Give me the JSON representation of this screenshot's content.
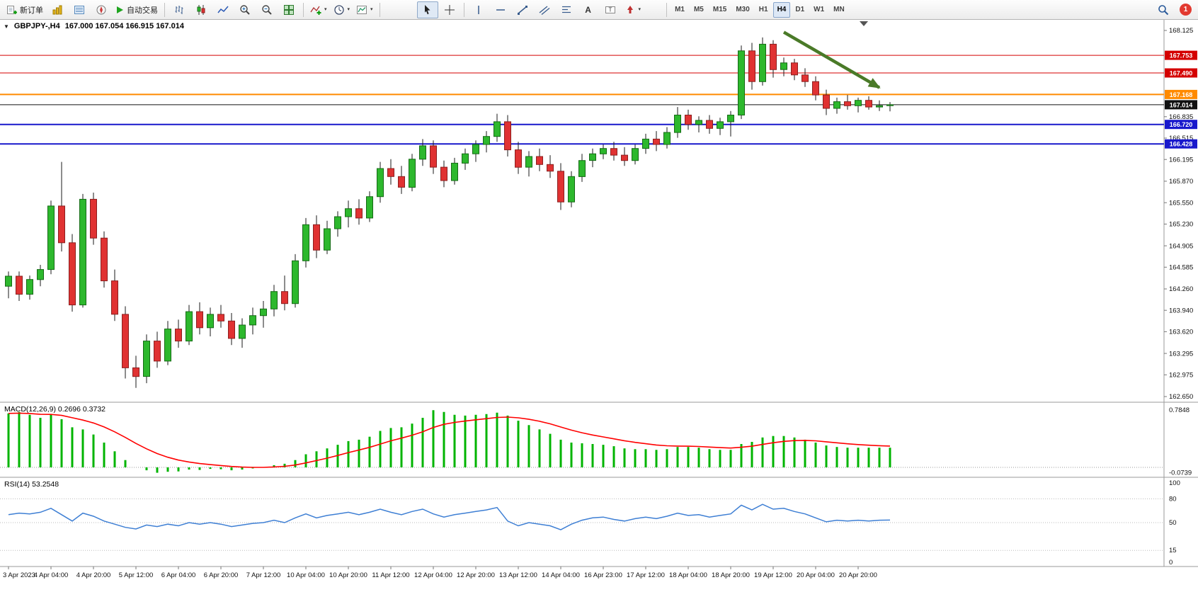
{
  "toolbar": {
    "new_order_label": "新订单",
    "autotrading_label": "自动交易",
    "timeframes": [
      "M1",
      "M5",
      "M15",
      "M30",
      "H1",
      "H4",
      "D1",
      "W1",
      "MN"
    ],
    "active_timeframe": "H4",
    "notification_count": "1",
    "icon_buttons": [
      "new-order-icon",
      "market-watch-icon",
      "data-window-icon",
      "navigator-icon",
      "autotrading-play-icon",
      "bar-chart-icon",
      "candlestick-chart-icon",
      "line-chart-icon",
      "zoom-in-icon",
      "zoom-out-icon",
      "tile-windows-icon",
      "indicators-icon",
      "periods-icon",
      "templates-icon",
      "cursor-icon",
      "crosshair-icon",
      "vertical-line-icon",
      "horizontal-line-icon",
      "trendline-icon",
      "equidistant-channel-icon",
      "fibonacci-icon",
      "text-icon",
      "text-label-icon",
      "arrows-icon",
      "search-icon"
    ]
  },
  "chart_data": [
    {
      "type": "candlestick",
      "symbol": "GBPJPY-",
      "timeframe": "H4",
      "title": "GBPJPY-,H4",
      "ohlc_label": "167.000 167.054 166.915 167.014",
      "current": {
        "open": 167.0,
        "high": 167.054,
        "low": 166.915,
        "close": 167.014
      },
      "up_color": "#2db82d",
      "down_color": "#e03232",
      "ylim": [
        162.65,
        168.125
      ],
      "y_ticks": [
        "168.125",
        "166.835",
        "166.515",
        "166.195",
        "165.870",
        "165.550",
        "165.230",
        "164.905",
        "164.585",
        "164.260",
        "163.940",
        "163.620",
        "163.295",
        "162.975",
        "162.650"
      ],
      "levels": [
        {
          "price": 167.753,
          "label": "167.753",
          "color": "#d40000",
          "width": 1
        },
        {
          "price": 167.49,
          "label": "167.490",
          "color": "#d40000",
          "width": 1
        },
        {
          "price": 167.168,
          "label": "167.168",
          "color": "#ff8a00",
          "width": 2
        },
        {
          "price": 167.014,
          "label": "167.014",
          "color": "#111111",
          "width": 1,
          "role": "current-price"
        },
        {
          "price": 166.72,
          "label": "166.720",
          "color": "#1818cc",
          "width": 2
        },
        {
          "price": 166.428,
          "label": "166.428",
          "color": "#1818cc",
          "width": 2
        }
      ],
      "time_labels": [
        {
          "label": "3 Apr 2023",
          "index": 0
        },
        {
          "label": "4 Apr 04:00",
          "index": 4
        },
        {
          "label": "4 Apr 20:00",
          "index": 8
        },
        {
          "label": "5 Apr 12:00",
          "index": 12
        },
        {
          "label": "6 Apr 04:00",
          "index": 16
        },
        {
          "label": "6 Apr 20:00",
          "index": 20
        },
        {
          "label": "7 Apr 12:00",
          "index": 24
        },
        {
          "label": "10 Apr 04:00",
          "index": 28
        },
        {
          "label": "10 Apr 20:00",
          "index": 32
        },
        {
          "label": "11 Apr 12:00",
          "index": 36
        },
        {
          "label": "12 Apr 04:00",
          "index": 40
        },
        {
          "label": "12 Apr 20:00",
          "index": 44
        },
        {
          "label": "13 Apr 12:00",
          "index": 48
        },
        {
          "label": "14 Apr 04:00",
          "index": 52
        },
        {
          "label": "16 Apr 23:00",
          "index": 56
        },
        {
          "label": "17 Apr 12:00",
          "index": 60
        },
        {
          "label": "18 Apr 04:00",
          "index": 64
        },
        {
          "label": "18 Apr 20:00",
          "index": 68
        },
        {
          "label": "19 Apr 12:00",
          "index": 72
        },
        {
          "label": "20 Apr 04:00",
          "index": 76
        },
        {
          "label": "20 Apr 20:00",
          "index": 80
        }
      ],
      "candles": [
        [
          164.3,
          164.52,
          164.12,
          164.45
        ],
        [
          164.45,
          164.52,
          164.08,
          164.18
        ],
        [
          164.18,
          164.46,
          164.1,
          164.4
        ],
        [
          164.4,
          164.62,
          164.3,
          164.55
        ],
        [
          164.55,
          165.58,
          164.48,
          165.5
        ],
        [
          165.5,
          166.16,
          164.82,
          164.95
        ],
        [
          164.95,
          165.08,
          163.92,
          164.02
        ],
        [
          164.02,
          165.68,
          163.98,
          165.6
        ],
        [
          165.6,
          165.7,
          164.92,
          165.02
        ],
        [
          165.02,
          165.12,
          164.28,
          164.38
        ],
        [
          164.38,
          164.55,
          163.78,
          163.88
        ],
        [
          163.88,
          164.0,
          162.92,
          163.08
        ],
        [
          163.08,
          163.26,
          162.78,
          162.95
        ],
        [
          162.95,
          163.58,
          162.85,
          163.48
        ],
        [
          163.48,
          163.62,
          163.08,
          163.18
        ],
        [
          163.18,
          163.78,
          163.12,
          163.66
        ],
        [
          163.66,
          163.8,
          163.38,
          163.48
        ],
        [
          163.48,
          164.02,
          163.42,
          163.92
        ],
        [
          163.92,
          164.06,
          163.58,
          163.68
        ],
        [
          163.68,
          163.98,
          163.55,
          163.88
        ],
        [
          163.88,
          164.02,
          163.68,
          163.78
        ],
        [
          163.78,
          163.9,
          163.42,
          163.52
        ],
        [
          163.52,
          163.82,
          163.38,
          163.72
        ],
        [
          163.72,
          163.98,
          163.58,
          163.86
        ],
        [
          163.86,
          164.08,
          163.68,
          163.96
        ],
        [
          163.96,
          164.32,
          163.85,
          164.22
        ],
        [
          164.22,
          164.46,
          163.94,
          164.04
        ],
        [
          164.04,
          164.78,
          163.98,
          164.68
        ],
        [
          164.68,
          165.32,
          164.58,
          165.22
        ],
        [
          165.22,
          165.36,
          164.72,
          164.84
        ],
        [
          164.84,
          165.28,
          164.78,
          165.16
        ],
        [
          165.16,
          165.42,
          165.04,
          165.34
        ],
        [
          165.34,
          165.58,
          165.18,
          165.46
        ],
        [
          165.46,
          165.6,
          165.22,
          165.32
        ],
        [
          165.32,
          165.72,
          165.26,
          165.64
        ],
        [
          165.64,
          166.16,
          165.55,
          166.06
        ],
        [
          166.06,
          166.2,
          165.82,
          165.94
        ],
        [
          165.94,
          166.1,
          165.68,
          165.78
        ],
        [
          165.78,
          166.28,
          165.72,
          166.2
        ],
        [
          166.2,
          166.5,
          166.1,
          166.4
        ],
        [
          166.4,
          166.48,
          165.98,
          166.08
        ],
        [
          166.08,
          166.18,
          165.78,
          165.88
        ],
        [
          165.88,
          166.22,
          165.82,
          166.14
        ],
        [
          166.14,
          166.36,
          166.04,
          166.28
        ],
        [
          166.28,
          166.48,
          166.16,
          166.42
        ],
        [
          166.42,
          166.62,
          166.3,
          166.54
        ],
        [
          166.54,
          166.88,
          166.46,
          166.76
        ],
        [
          166.76,
          166.86,
          166.24,
          166.34
        ],
        [
          166.34,
          166.46,
          165.98,
          166.08
        ],
        [
          166.08,
          166.32,
          165.94,
          166.24
        ],
        [
          166.24,
          166.36,
          166.02,
          166.12
        ],
        [
          166.12,
          166.26,
          165.92,
          166.02
        ],
        [
          166.02,
          166.14,
          165.44,
          165.56
        ],
        [
          165.56,
          166.02,
          165.48,
          165.94
        ],
        [
          165.94,
          166.28,
          165.86,
          166.18
        ],
        [
          166.18,
          166.36,
          166.08,
          166.28
        ],
        [
          166.28,
          166.42,
          166.2,
          166.36
        ],
        [
          166.36,
          166.46,
          166.18,
          166.26
        ],
        [
          166.26,
          166.38,
          166.1,
          166.18
        ],
        [
          166.18,
          166.42,
          166.12,
          166.36
        ],
        [
          166.36,
          166.58,
          166.28,
          166.5
        ],
        [
          166.5,
          166.62,
          166.32,
          166.42
        ],
        [
          166.42,
          166.68,
          166.36,
          166.6
        ],
        [
          166.6,
          166.98,
          166.52,
          166.86
        ],
        [
          166.86,
          166.94,
          166.64,
          166.72
        ],
        [
          166.72,
          166.84,
          166.6,
          166.78
        ],
        [
          166.78,
          166.86,
          166.58,
          166.66
        ],
        [
          166.66,
          166.82,
          166.56,
          166.76
        ],
        [
          166.76,
          166.92,
          166.54,
          166.86
        ],
        [
          166.86,
          167.9,
          166.8,
          167.82
        ],
        [
          167.82,
          167.94,
          167.24,
          167.36
        ],
        [
          167.36,
          168.02,
          167.3,
          167.92
        ],
        [
          167.92,
          167.98,
          167.42,
          167.54
        ],
        [
          167.54,
          167.72,
          167.44,
          167.64
        ],
        [
          167.64,
          167.7,
          167.38,
          167.46
        ],
        [
          167.46,
          167.56,
          167.28,
          167.36
        ],
        [
          167.36,
          167.44,
          167.08,
          167.16
        ],
        [
          167.16,
          167.24,
          166.86,
          166.96
        ],
        [
          166.96,
          167.12,
          166.88,
          167.06
        ],
        [
          167.06,
          167.16,
          166.94,
          167.0
        ],
        [
          167.0,
          167.12,
          166.9,
          167.08
        ],
        [
          167.08,
          167.14,
          166.94,
          166.98
        ],
        [
          166.98,
          167.08,
          166.92,
          167.0
        ],
        [
          167.0,
          167.054,
          166.915,
          167.014
        ]
      ],
      "trend_arrow": {
        "from_index": 73,
        "from_price": 168.1,
        "to_index": 82,
        "to_price": 167.27,
        "color": "#4a7a28"
      }
    },
    {
      "type": "bar",
      "name": "MACD(12,26,9)",
      "values_text": "0.2696 0.3732",
      "histogram_color": "#00b400",
      "signal_color": "#ff0000",
      "signal_period": 9,
      "axis_labels": [
        "0.7848",
        "-0.0739"
      ],
      "axis_max": 0.7848,
      "axis_min": -0.0739,
      "values": [
        0.74,
        0.76,
        0.72,
        0.68,
        0.72,
        0.66,
        0.55,
        0.52,
        0.45,
        0.34,
        0.22,
        0.1,
        0.0,
        -0.04,
        -0.0739,
        -0.06,
        -0.055,
        -0.03,
        -0.035,
        -0.02,
        -0.025,
        -0.04,
        -0.03,
        -0.015,
        0.0,
        0.03,
        0.05,
        0.1,
        0.18,
        0.22,
        0.26,
        0.31,
        0.36,
        0.38,
        0.42,
        0.5,
        0.54,
        0.55,
        0.6,
        0.68,
        0.7848,
        0.76,
        0.72,
        0.71,
        0.72,
        0.73,
        0.75,
        0.71,
        0.64,
        0.58,
        0.52,
        0.46,
        0.38,
        0.34,
        0.33,
        0.32,
        0.31,
        0.29,
        0.26,
        0.25,
        0.25,
        0.24,
        0.25,
        0.28,
        0.28,
        0.27,
        0.25,
        0.24,
        0.24,
        0.32,
        0.35,
        0.41,
        0.43,
        0.43,
        0.41,
        0.38,
        0.34,
        0.3,
        0.28,
        0.27,
        0.27,
        0.27,
        0.27,
        0.2696
      ]
    },
    {
      "type": "line",
      "name": "RSI(14)",
      "value_text": "53.2548",
      "line_color": "#3e7fd4",
      "levels": [
        80,
        50,
        15
      ],
      "axis_ticks": [
        "100",
        "80",
        "50",
        "15",
        "0"
      ],
      "ylim": [
        0,
        100
      ],
      "values": [
        60,
        62,
        61,
        63,
        68,
        60,
        52,
        62,
        58,
        52,
        48,
        44,
        42,
        47,
        45,
        48,
        46,
        50,
        48,
        50,
        48,
        45,
        47,
        49,
        50,
        53,
        50,
        56,
        61,
        56,
        59,
        61,
        63,
        60,
        63,
        67,
        63,
        60,
        64,
        67,
        61,
        57,
        60,
        62,
        64,
        66,
        69,
        52,
        46,
        50,
        48,
        46,
        41,
        48,
        53,
        56,
        57,
        54,
        52,
        55,
        57,
        55,
        58,
        62,
        59,
        60,
        57,
        59,
        61,
        72,
        66,
        73,
        67,
        68,
        64,
        61,
        56,
        51,
        53,
        52,
        53,
        52,
        53,
        53.25
      ]
    }
  ]
}
